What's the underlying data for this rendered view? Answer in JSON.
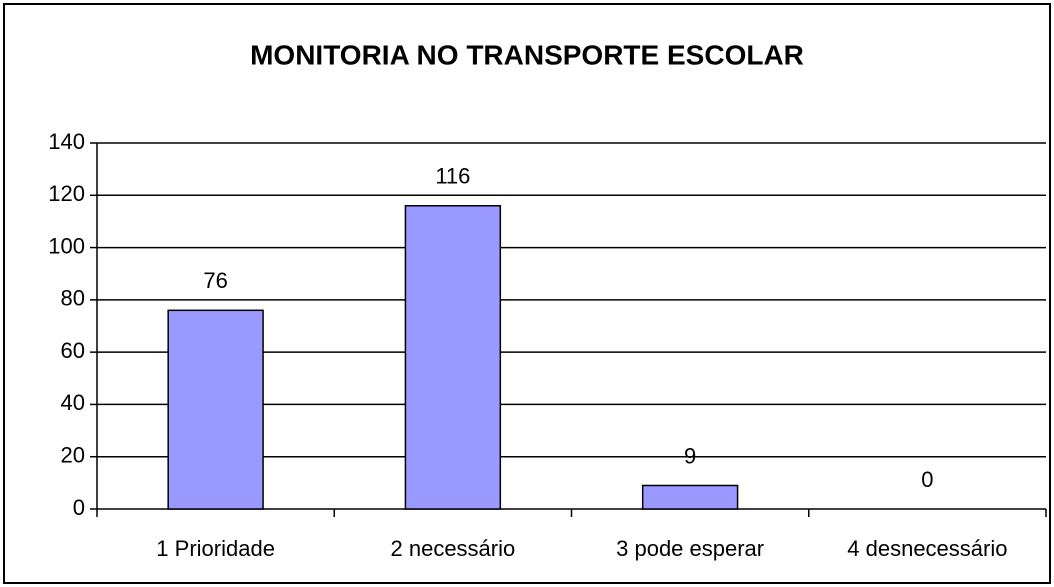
{
  "chart_data": {
    "type": "bar",
    "title": "MONITORIA NO TRANSPORTE ESCOLAR",
    "categories": [
      "1 Prioridade",
      "2 necessário",
      "3 pode esperar",
      "4 desnecessário"
    ],
    "values": [
      76,
      116,
      9,
      0
    ],
    "color": "#9999ff",
    "ylim": [
      0,
      140
    ],
    "yticks": [
      0,
      20,
      40,
      60,
      80,
      100,
      120,
      140
    ],
    "grid": true
  }
}
